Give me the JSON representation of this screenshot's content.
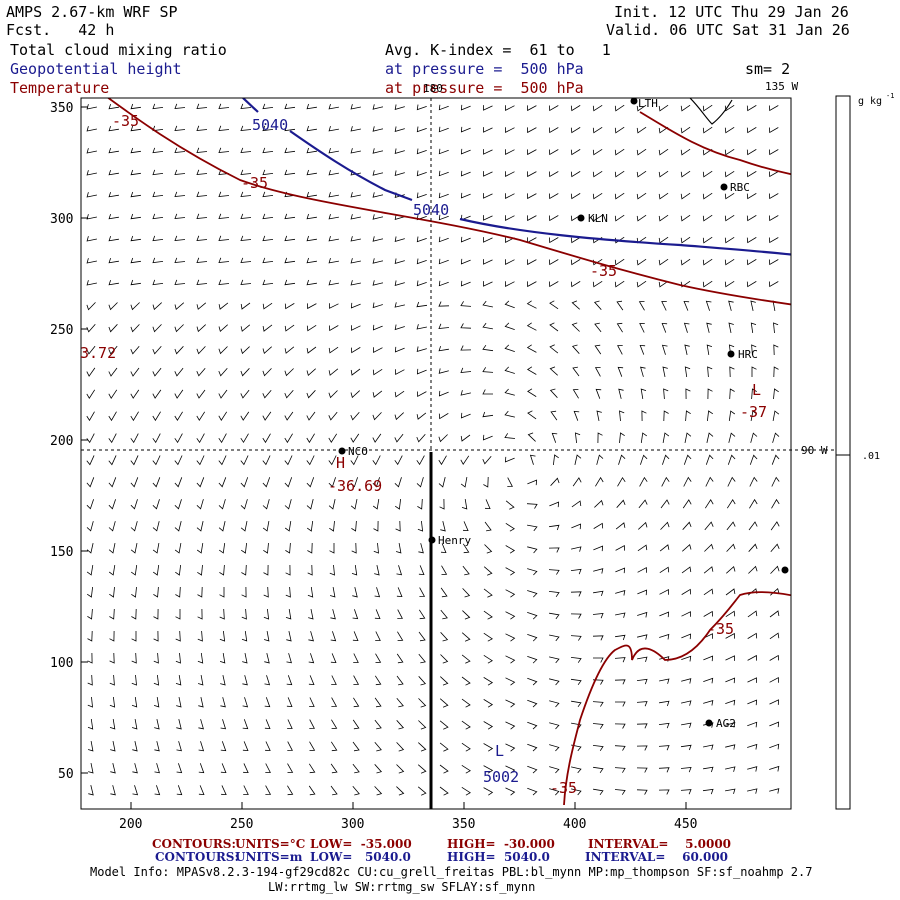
{
  "header": {
    "model": "AMPS 2.67-km WRF SP",
    "forecast": "Fcst.   42 h",
    "init": "Init. 12 UTC Thu 29 Jan 26",
    "valid": "Valid. 06 UTC Sat 31 Jan 26",
    "field1": "Total cloud mixing ratio",
    "field2": "Geopotential height",
    "field3": "Temperature",
    "avg": "Avg. K-index =  61 to   1",
    "pressure1": "at pressure =  500 hPa",
    "pressure2": "at pressure =  500 hPa",
    "smooth": "sm= 2"
  },
  "map": {
    "x_ticks": [
      "200",
      "250",
      "300",
      "350",
      "400",
      "450"
    ],
    "y_ticks": [
      "350",
      "300",
      "250",
      "200",
      "150",
      "100",
      "50"
    ],
    "longitudes": {
      "top": "180",
      "right_top": "135 W",
      "right_mid": "90 W"
    },
    "stations": [
      {
        "name": "RBC"
      },
      {
        "name": "KLN"
      },
      {
        "name": "HRC"
      },
      {
        "name": "NCO"
      },
      {
        "name": "Henry"
      },
      {
        "name": "AG2"
      },
      {
        "name": "LTH"
      }
    ],
    "contour_labels": {
      "h5040_a": "5040",
      "h5040_b": "5040",
      "h5002": "5002",
      "t35_a": "-35",
      "t35_b": "-35",
      "t35_c": "-35",
      "t35_d": "-35",
      "t35_e": "-35",
      "t37": "-37",
      "t3669": "-36.69",
      "t372": "3.72",
      "low1": "L",
      "low2": "L",
      "high": "H"
    }
  },
  "colorbar": {
    "unit": "g kg",
    "unit_exp": "-1",
    "value": ".01"
  },
  "footer": {
    "row1": {
      "title": "CONTOURS:",
      "units": "UNITS=°C",
      "low": "LOW=  -35.000",
      "high": "HIGH=  -30.000",
      "interval": "INTERVAL=    5.0000"
    },
    "row2": {
      "title": "CONTOURS:",
      "units": "UNITS=m",
      "low": "LOW=   5040.0",
      "high": "HIGH=  5040.0",
      "interval": "INTERVAL=    60.000"
    },
    "model_info": "Model Info: MPASv8.2.3-194-gf29cd82c CU:cu_grell_freitas PBL:bl_mynn MP:mp_thompson SF:sf_noahmp 2.7",
    "model_info2": "LW:rrtmg_lw SW:rrtmg_sw SFLAY:sf_mynn"
  },
  "colors": {
    "height": "#1b1b8f",
    "temperature": "#8b0000"
  }
}
